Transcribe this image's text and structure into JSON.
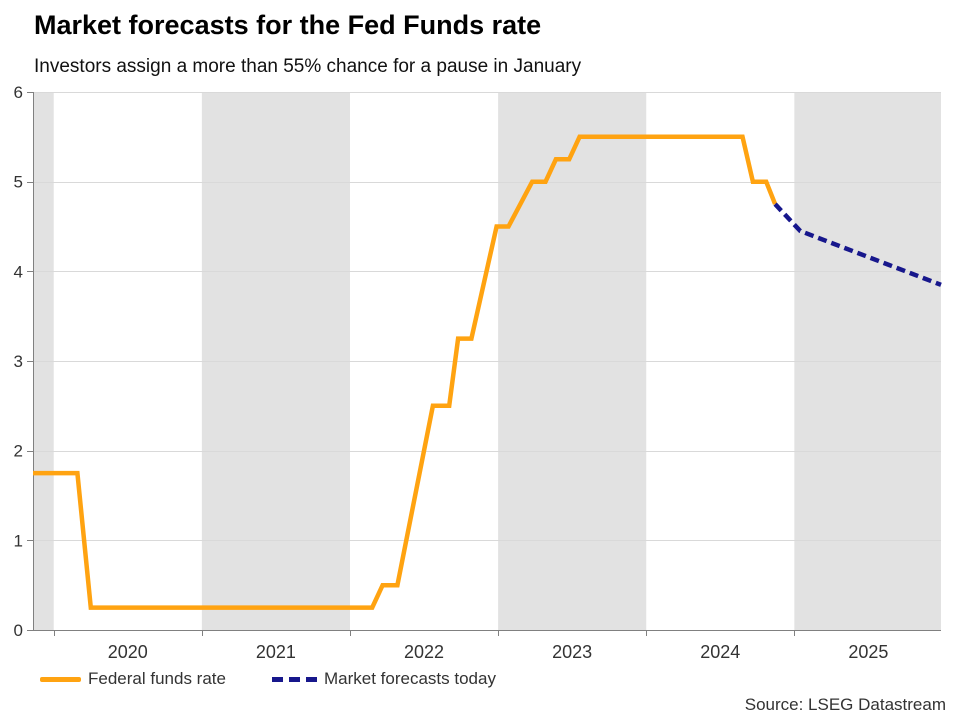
{
  "source": "Source: LSEG Datastream",
  "colors": {
    "fed_line": "#FFA311",
    "forecast_line": "#17178C",
    "band_fill": "#e2e2e2",
    "gridline": "#d9d9d9",
    "axis": "#808080",
    "tick_label": "#333333"
  },
  "chart_data": {
    "type": "line",
    "title": "Market forecasts for the Fed Funds rate",
    "subtitle": "Investors assign a more than 55% chance for a pause in January",
    "xlabel": "",
    "ylabel": "",
    "xlim": [
      2019.86,
      2025.99
    ],
    "ylim": [
      0,
      6
    ],
    "y_ticks": [
      0,
      1,
      2,
      3,
      4,
      5,
      6
    ],
    "x_year_ticks": [
      2020,
      2021,
      2022,
      2023,
      2024,
      2025
    ],
    "x_year_labels": [
      "2020",
      "2021",
      "2022",
      "2023",
      "2024",
      "2025"
    ],
    "shaded_year_bands": [
      [
        2019.86,
        2020.0
      ],
      [
        2021.0,
        2022.0
      ],
      [
        2023.0,
        2024.0
      ],
      [
        2025.0,
        2025.99
      ]
    ],
    "grid": "horizontal",
    "legend_position": "bottom-left",
    "series": [
      {
        "name": "Federal funds rate",
        "style": "solid",
        "points": [
          [
            2019.86,
            1.75
          ],
          [
            2020.16,
            1.75
          ],
          [
            2020.25,
            0.25
          ],
          [
            2022.15,
            0.25
          ],
          [
            2022.22,
            0.5
          ],
          [
            2022.32,
            0.5
          ],
          [
            2022.56,
            2.5
          ],
          [
            2022.67,
            2.5
          ],
          [
            2022.73,
            3.25
          ],
          [
            2022.82,
            3.25
          ],
          [
            2022.99,
            4.5
          ],
          [
            2023.07,
            4.5
          ],
          [
            2023.23,
            5.0
          ],
          [
            2023.32,
            5.0
          ],
          [
            2023.39,
            5.25
          ],
          [
            2023.48,
            5.25
          ],
          [
            2023.55,
            5.5
          ],
          [
            2024.65,
            5.5
          ],
          [
            2024.72,
            5.0
          ],
          [
            2024.81,
            5.0
          ],
          [
            2024.87,
            4.75
          ]
        ]
      },
      {
        "name": "Market forecasts today",
        "style": "dashed",
        "points": [
          [
            2024.87,
            4.75
          ],
          [
            2025.04,
            4.45
          ],
          [
            2025.99,
            3.85
          ]
        ]
      }
    ]
  }
}
